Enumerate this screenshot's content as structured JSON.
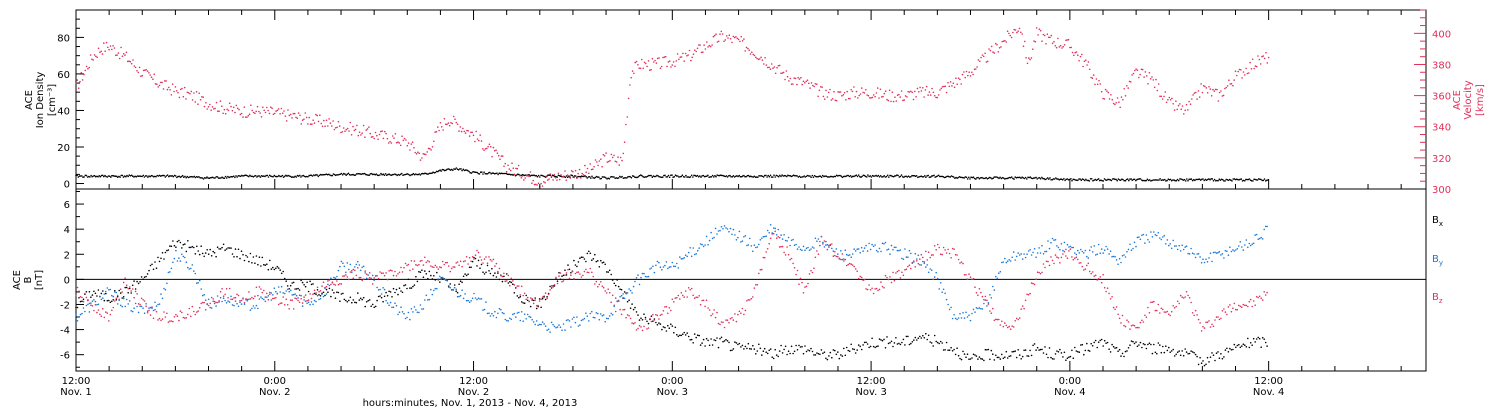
{
  "colors": {
    "pink": "#e0305a",
    "blue": "#1a78d8",
    "black": "#000000",
    "frame": "#000000",
    "background": "#ffffff"
  },
  "x_axis": {
    "title": "hours:minutes, Nov.  1, 2013 - Nov.  4, 2013",
    "range_hours": [
      0,
      81.5
    ],
    "ticks": [
      {
        "hours": 0,
        "time": "12:00",
        "day": "Nov. 1"
      },
      {
        "hours": 12,
        "time": "0:00",
        "day": "Nov. 2"
      },
      {
        "hours": 24,
        "time": "12:00",
        "day": "Nov. 2"
      },
      {
        "hours": 36,
        "time": "0:00",
        "day": "Nov. 3"
      },
      {
        "hours": 48,
        "time": "12:00",
        "day": "Nov. 3"
      },
      {
        "hours": 60,
        "time": "0:00",
        "day": "Nov. 4"
      },
      {
        "hours": 72,
        "time": "12:00",
        "day": "Nov. 4"
      }
    ],
    "minor_tick_hours": 2
  },
  "chart_data": [
    {
      "type": "scatter",
      "panel": "top",
      "ylabel_left": [
        "ACE",
        "Ion Density",
        "[cm⁻³]"
      ],
      "ylabel_right": [
        "ACE",
        "Velocity",
        "[km/s]"
      ],
      "ylim_left": [
        -3,
        95
      ],
      "yticks_left": [
        0,
        20,
        40,
        60,
        80
      ],
      "ylim_right": [
        300,
        415
      ],
      "yticks_right": [
        300,
        320,
        340,
        360,
        380,
        400
      ],
      "series": [
        {
          "name": "Ion Density",
          "axis": "left",
          "color": "black",
          "x": [
            0,
            2,
            4,
            6,
            8,
            10,
            12,
            14,
            16,
            18,
            20,
            21,
            22,
            23,
            24,
            26,
            28,
            30,
            32,
            34,
            36,
            38,
            40,
            42,
            44,
            46,
            48,
            50,
            52,
            54,
            56,
            58,
            60,
            62,
            64,
            66,
            68,
            70,
            72
          ],
          "y": [
            4,
            4,
            4,
            4,
            3,
            4,
            4,
            4,
            5,
            5,
            5,
            5,
            7,
            8,
            6,
            5,
            4,
            4,
            3,
            4,
            4,
            4,
            4,
            4,
            4,
            4,
            4,
            4,
            4,
            3,
            3,
            3,
            2,
            2,
            2,
            2,
            2,
            2,
            2
          ]
        },
        {
          "name": "Velocity",
          "axis": "right",
          "color": "pink",
          "x": [
            0,
            0.5,
            1,
            1.5,
            2,
            3,
            4,
            5,
            6,
            7,
            8,
            9,
            10,
            11,
            12,
            13,
            14,
            15,
            16,
            17,
            18,
            19,
            20,
            21,
            22,
            22.5,
            23,
            24,
            25,
            26,
            27,
            28,
            29,
            30,
            31,
            32,
            33,
            33.5,
            34,
            35,
            36,
            37,
            38,
            39,
            40,
            41,
            42,
            43,
            44,
            45,
            46,
            47,
            48,
            49,
            50,
            51,
            52,
            53,
            54,
            55,
            56,
            57,
            57.5,
            58,
            59,
            60,
            61,
            62,
            63,
            64,
            65,
            66,
            67,
            68,
            69,
            70,
            71,
            72
          ],
          "y": [
            365,
            375,
            385,
            390,
            392,
            385,
            375,
            368,
            363,
            360,
            355,
            352,
            350,
            350,
            349,
            347,
            345,
            343,
            340,
            338,
            335,
            333,
            330,
            320,
            340,
            345,
            342,
            335,
            325,
            315,
            310,
            305,
            308,
            310,
            312,
            320,
            318,
            375,
            380,
            380,
            382,
            385,
            392,
            398,
            395,
            388,
            380,
            372,
            368,
            362,
            360,
            362,
            362,
            360,
            360,
            362,
            362,
            368,
            375,
            385,
            395,
            405,
            380,
            400,
            395,
            392,
            380,
            362,
            355,
            375,
            370,
            355,
            350,
            365,
            360,
            372,
            380,
            385
          ]
        }
      ]
    },
    {
      "type": "scatter",
      "panel": "bottom",
      "ylabel_left": [
        "ACE",
        "B",
        "[nT]"
      ],
      "ylim": [
        -7.3,
        7.2
      ],
      "yticks": [
        -6,
        -4,
        -2,
        0,
        2,
        4,
        6
      ],
      "zero_line": true,
      "legend_position": "right",
      "series": [
        {
          "name": "Bx",
          "color": "black",
          "legend_main": "B",
          "legend_sub": "x",
          "x": [
            0,
            1,
            2,
            3,
            4,
            5,
            6,
            7,
            8,
            9,
            10,
            11,
            12,
            13,
            14,
            15,
            16,
            17,
            18,
            19,
            20,
            21,
            22,
            23,
            24,
            25,
            26,
            27,
            28,
            29,
            30,
            31,
            32,
            33,
            34,
            35,
            36,
            37,
            38,
            39,
            40,
            41,
            42,
            43,
            44,
            45,
            46,
            47,
            48,
            49,
            50,
            51,
            52,
            53,
            54,
            55,
            56,
            57,
            58,
            59,
            60,
            61,
            62,
            63,
            64,
            65,
            66,
            67,
            68,
            69,
            70,
            71,
            72
          ],
          "y": [
            -2,
            -1,
            -1.5,
            -1,
            0,
            1.5,
            3,
            2.5,
            2,
            2.5,
            2,
            1.5,
            1,
            -0.5,
            -0.5,
            -1,
            -1.5,
            -1.5,
            -2,
            -1,
            -0.5,
            0.5,
            0,
            -1,
            1.5,
            0.5,
            0,
            -1.5,
            -2,
            0,
            1,
            2,
            1,
            -1,
            -3,
            -3.5,
            -4,
            -4.5,
            -5,
            -5,
            -5.5,
            -5.5,
            -6,
            -5.5,
            -5.5,
            -6,
            -6,
            -5.5,
            -5,
            -5,
            -5,
            -4.5,
            -5,
            -5.5,
            -6.5,
            -6,
            -6,
            -6,
            -5.5,
            -6,
            -6,
            -5.5,
            -5,
            -6,
            -5,
            -5.5,
            -5.5,
            -6,
            -6.5,
            -6,
            -5.5,
            -5,
            -5
          ]
        },
        {
          "name": "By",
          "color": "blue",
          "legend_main": "B",
          "legend_sub": "y",
          "x": [
            0,
            1,
            2,
            3,
            4,
            5,
            6,
            7,
            8,
            9,
            10,
            11,
            12,
            13,
            14,
            15,
            16,
            17,
            18,
            19,
            20,
            21,
            22,
            23,
            24,
            25,
            26,
            27,
            28,
            29,
            30,
            31,
            32,
            33,
            34,
            35,
            36,
            37,
            38,
            39,
            40,
            41,
            42,
            43,
            44,
            45,
            46,
            47,
            48,
            49,
            50,
            51,
            52,
            53,
            54,
            55,
            56,
            57,
            58,
            59,
            60,
            61,
            62,
            63,
            64,
            65,
            66,
            67,
            68,
            69,
            70,
            71,
            72
          ],
          "y": [
            -3,
            -2,
            -1,
            -2,
            -2.5,
            -2,
            2,
            1,
            -2,
            -1.5,
            -2,
            -2,
            -1,
            -1,
            -2,
            -1,
            1,
            1,
            0,
            -2,
            -3,
            -2,
            0,
            -1,
            -1.5,
            -2.5,
            -3,
            -3,
            -3.5,
            -4,
            -3.5,
            -3,
            -3,
            -1.5,
            0,
            1,
            1,
            2,
            3,
            4,
            3.5,
            2.5,
            4,
            3,
            2.5,
            3,
            2,
            2,
            2.5,
            2.5,
            2,
            1.5,
            0,
            -3,
            -3,
            -2,
            1.5,
            2,
            2,
            3,
            2.5,
            2,
            2.5,
            1.5,
            3,
            3.5,
            3,
            2.5,
            1.5,
            2,
            2.5,
            3,
            4
          ]
        },
        {
          "name": "Bz",
          "color": "pink",
          "legend_main": "B",
          "legend_sub": "z",
          "x": [
            0,
            1,
            2,
            3,
            4,
            5,
            6,
            7,
            8,
            9,
            10,
            11,
            12,
            13,
            14,
            15,
            16,
            17,
            18,
            19,
            20,
            21,
            22,
            23,
            24,
            25,
            26,
            27,
            28,
            29,
            30,
            31,
            32,
            33,
            34,
            35,
            36,
            37,
            38,
            39,
            40,
            41,
            42,
            43,
            44,
            45,
            46,
            47,
            48,
            49,
            50,
            51,
            52,
            53,
            54,
            55,
            56,
            57,
            58,
            59,
            60,
            61,
            62,
            63,
            64,
            65,
            66,
            67,
            68,
            69,
            70,
            71,
            72
          ],
          "y": [
            -1,
            -2,
            -3,
            0,
            -2,
            -3,
            -3,
            -2.5,
            -2,
            -1,
            -1.5,
            -1,
            -1.5,
            -2,
            -1.5,
            -0.5,
            0,
            0.5,
            0,
            0.5,
            1,
            1.5,
            1,
            1,
            2,
            1.5,
            0,
            -1,
            -2,
            0,
            0.5,
            0.5,
            -1,
            -2.5,
            -4,
            -3,
            -2,
            -1,
            -2,
            -3.5,
            -3,
            -1,
            4,
            2,
            -1,
            3,
            2,
            1,
            -1,
            0,
            0.5,
            1.5,
            2.5,
            2,
            0,
            -2,
            -4,
            -3,
            0.5,
            1.5,
            2,
            1,
            0,
            -3,
            -4,
            -2,
            -3,
            -1,
            -4,
            -3,
            -2,
            -2,
            -1
          ]
        }
      ]
    }
  ]
}
